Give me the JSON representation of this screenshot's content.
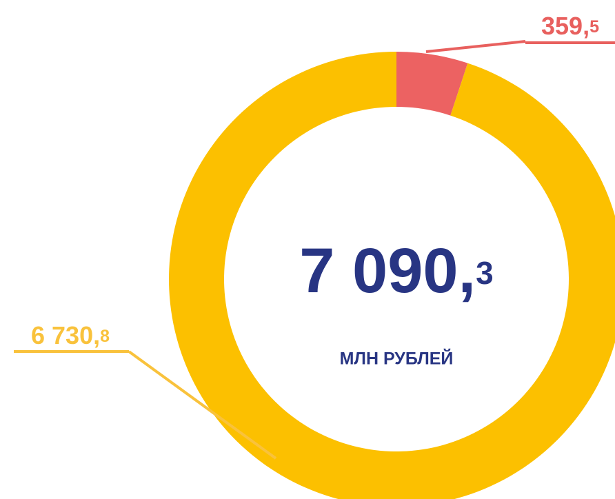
{
  "chart_data": {
    "type": "pie",
    "donut": true,
    "categories": [
      null,
      null
    ],
    "values": [
      359.5,
      6730.8
    ],
    "value_labels": [
      "359,5",
      "6 730,8"
    ],
    "colors": [
      "#ec6262",
      "#fcc000"
    ],
    "label_colors": [
      "#e8605e",
      "#f9c23c"
    ],
    "center_text": "7 090,3",
    "center_subtext": "МЛН РУБЛЕЙ"
  }
}
